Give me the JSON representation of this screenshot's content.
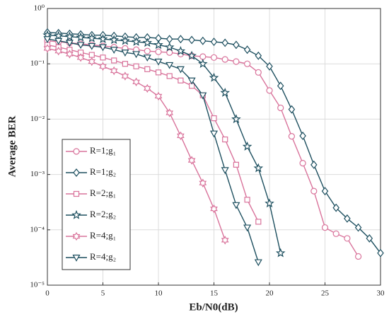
{
  "chart_data": {
    "type": "line",
    "xlabel": "Eb/N0(dB)",
    "ylabel": "Average BER",
    "x": [
      0,
      1,
      2,
      3,
      4,
      5,
      6,
      7,
      8,
      9,
      10,
      11,
      12,
      13,
      14,
      15,
      16,
      17,
      18,
      19,
      20,
      21,
      22,
      23,
      24,
      25,
      26,
      27,
      28,
      29,
      30
    ],
    "xlim": [
      0,
      30
    ],
    "xticks": [
      0,
      5,
      10,
      15,
      20,
      25,
      30
    ],
    "ylim": [
      1e-05,
      1
    ],
    "log_y": true,
    "grid": true,
    "legend": "lower left",
    "yticks": [
      {
        "value": 1e-05,
        "label": "10⁻⁵"
      },
      {
        "value": 0.0001,
        "label": "10⁻⁴"
      },
      {
        "value": 0.001,
        "label": "10⁻³"
      },
      {
        "value": 0.01,
        "label": "10⁻²"
      },
      {
        "value": 0.1,
        "label": "10⁻¹"
      },
      {
        "value": 1,
        "label": "10⁰"
      }
    ],
    "series": [
      {
        "name": "R=1;g₁",
        "color": "#d9739b",
        "marker": "circle",
        "values": [
          0.26,
          0.25,
          0.24,
          0.23,
          0.22,
          0.21,
          0.2,
          0.19,
          0.18,
          0.17,
          0.165,
          0.16,
          0.15,
          0.14,
          0.135,
          0.13,
          0.12,
          0.11,
          0.1,
          0.07,
          0.033,
          0.016,
          0.0049,
          0.0016,
          0.0005,
          0.00011,
          8.5e-05,
          7e-05,
          3.3e-05,
          null,
          null
        ]
      },
      {
        "name": "R=1;g₂",
        "color": "#1d4f5f",
        "marker": "diamond",
        "values": [
          0.37,
          0.36,
          0.35,
          0.34,
          0.33,
          0.33,
          0.32,
          0.31,
          0.3,
          0.3,
          0.29,
          0.28,
          0.28,
          0.27,
          0.26,
          0.25,
          0.24,
          0.22,
          0.18,
          0.14,
          0.09,
          0.04,
          0.015,
          0.005,
          0.0015,
          0.0005,
          0.00025,
          0.00016,
          0.00011,
          7e-05,
          3.8e-05
        ]
      },
      {
        "name": "R=2;g₁",
        "color": "#d9739b",
        "marker": "square",
        "values": [
          0.22,
          0.2,
          0.18,
          0.16,
          0.145,
          0.13,
          0.115,
          0.1,
          0.09,
          0.08,
          0.07,
          0.06,
          0.05,
          0.04,
          0.027,
          0.0104,
          0.0043,
          0.0015,
          0.00035,
          0.00014,
          null,
          null,
          null,
          null,
          null,
          null,
          null,
          null,
          null,
          null,
          null
        ]
      },
      {
        "name": "R=2;g₂",
        "color": "#1d4f5f",
        "marker": "star",
        "values": [
          0.33,
          0.32,
          0.31,
          0.3,
          0.29,
          0.28,
          0.27,
          0.26,
          0.25,
          0.24,
          0.22,
          0.2,
          0.17,
          0.14,
          0.1,
          0.056,
          0.03,
          0.01,
          0.0032,
          0.0013,
          0.0003,
          3.8e-05,
          null,
          null,
          null,
          null,
          null,
          null,
          null,
          null,
          null
        ]
      },
      {
        "name": "R=4;g₁",
        "color": "#d9739b",
        "marker": "hexagram",
        "values": [
          0.19,
          0.17,
          0.15,
          0.13,
          0.11,
          0.09,
          0.075,
          0.06,
          0.047,
          0.036,
          0.026,
          0.013,
          0.005,
          0.0018,
          0.0007,
          0.00024,
          6.5e-05,
          null,
          null,
          null,
          null,
          null,
          null,
          null,
          null,
          null,
          null,
          null,
          null,
          null,
          null
        ]
      },
      {
        "name": "R=4;g₂",
        "color": "#1d4f5f",
        "marker": "triangle-down",
        "values": [
          0.28,
          0.26,
          0.24,
          0.22,
          0.21,
          0.2,
          0.18,
          0.16,
          0.15,
          0.13,
          0.11,
          0.095,
          0.08,
          0.05,
          0.027,
          0.0055,
          0.0012,
          0.00028,
          0.00011,
          2.6e-05,
          null,
          null,
          null,
          null,
          null,
          null,
          null,
          null,
          null,
          null,
          null
        ]
      }
    ]
  }
}
